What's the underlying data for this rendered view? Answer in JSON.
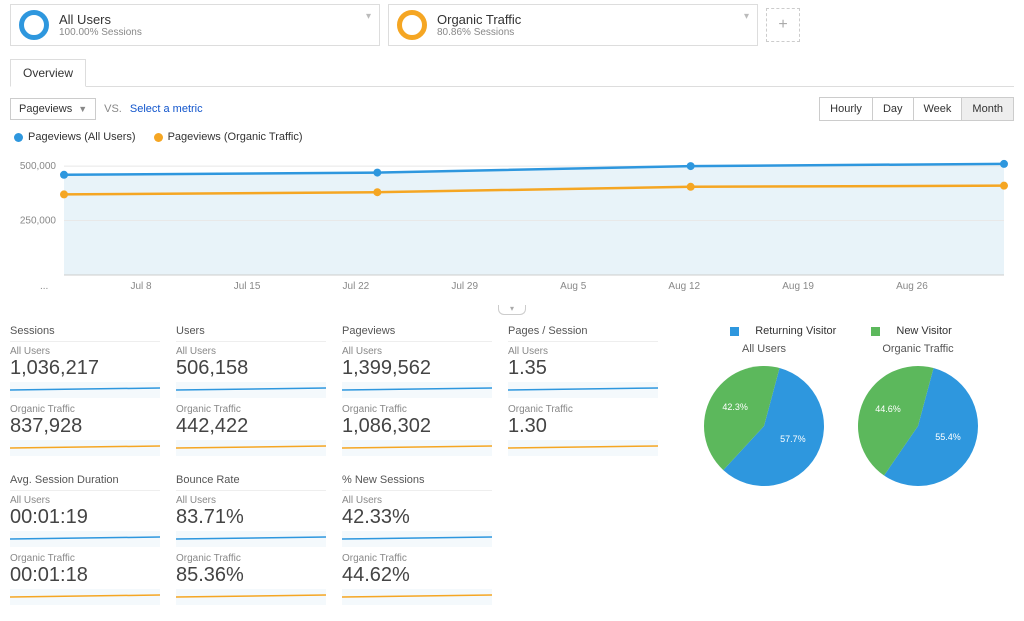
{
  "colors": {
    "blue": "#2e97de",
    "orange": "#f5a623",
    "green": "#5cb85c",
    "grid": "#e8e8e8",
    "axis_text": "#888888",
    "area_fill": "#e8f3f9"
  },
  "segments": [
    {
      "title": "All Users",
      "sub": "100.00% Sessions",
      "ring_color": "#2e97de"
    },
    {
      "title": "Organic Traffic",
      "sub": "80.86% Sessions",
      "ring_color": "#f5a623"
    }
  ],
  "tab": "Overview",
  "metric_selector": "Pageviews",
  "vs_label": "VS.",
  "select_metric": "Select a metric",
  "time_buttons": [
    "Hourly",
    "Day",
    "Week",
    "Month"
  ],
  "time_active": "Month",
  "chart": {
    "legend": [
      {
        "label": "Pageviews (All Users)",
        "color": "#2e97de"
      },
      {
        "label": "Pageviews (Organic Traffic)",
        "color": "#f5a623"
      }
    ],
    "y_ticks": [
      "500,000",
      "250,000"
    ],
    "x_ticks": [
      "...",
      "Jul 8",
      "Jul 15",
      "Jul 22",
      "Jul 29",
      "Aug 5",
      "Aug 12",
      "Aug 19",
      "Aug 26",
      ""
    ],
    "ylim": [
      0,
      560000
    ],
    "points_blue": [
      460000,
      470000,
      500000,
      510000
    ],
    "points_orange": [
      370000,
      380000,
      405000,
      410000
    ]
  },
  "metrics_row1": [
    {
      "title": "Sessions",
      "au_label": "All Users",
      "au_val": "1,036,217",
      "ot_label": "Organic Traffic",
      "ot_val": "837,928"
    },
    {
      "title": "Users",
      "au_label": "All Users",
      "au_val": "506,158",
      "ot_label": "Organic Traffic",
      "ot_val": "442,422"
    },
    {
      "title": "Pageviews",
      "au_label": "All Users",
      "au_val": "1,399,562",
      "ot_label": "Organic Traffic",
      "ot_val": "1,086,302"
    },
    {
      "title": "Pages / Session",
      "au_label": "All Users",
      "au_val": "1.35",
      "ot_label": "Organic Traffic",
      "ot_val": "1.30"
    }
  ],
  "metrics_row2": [
    {
      "title": "Avg. Session Duration",
      "au_label": "All Users",
      "au_val": "00:01:19",
      "ot_label": "Organic Traffic",
      "ot_val": "00:01:18"
    },
    {
      "title": "Bounce Rate",
      "au_label": "All Users",
      "au_val": "83.71%",
      "ot_label": "Organic Traffic",
      "ot_val": "85.36%"
    },
    {
      "title": "% New Sessions",
      "au_label": "All Users",
      "au_val": "42.33%",
      "ot_label": "Organic Traffic",
      "ot_val": "44.62%"
    }
  ],
  "pie_legend": {
    "returning": "Returning Visitor",
    "new": "New Visitor"
  },
  "pies": [
    {
      "title": "All Users",
      "returning_pct": 57.7,
      "new_pct": 42.3,
      "returning_label": "57.7%",
      "new_label": "42.3%"
    },
    {
      "title": "Organic Traffic",
      "returning_pct": 55.4,
      "new_pct": 44.6,
      "returning_label": "55.4%",
      "new_label": "44.6%"
    }
  ]
}
